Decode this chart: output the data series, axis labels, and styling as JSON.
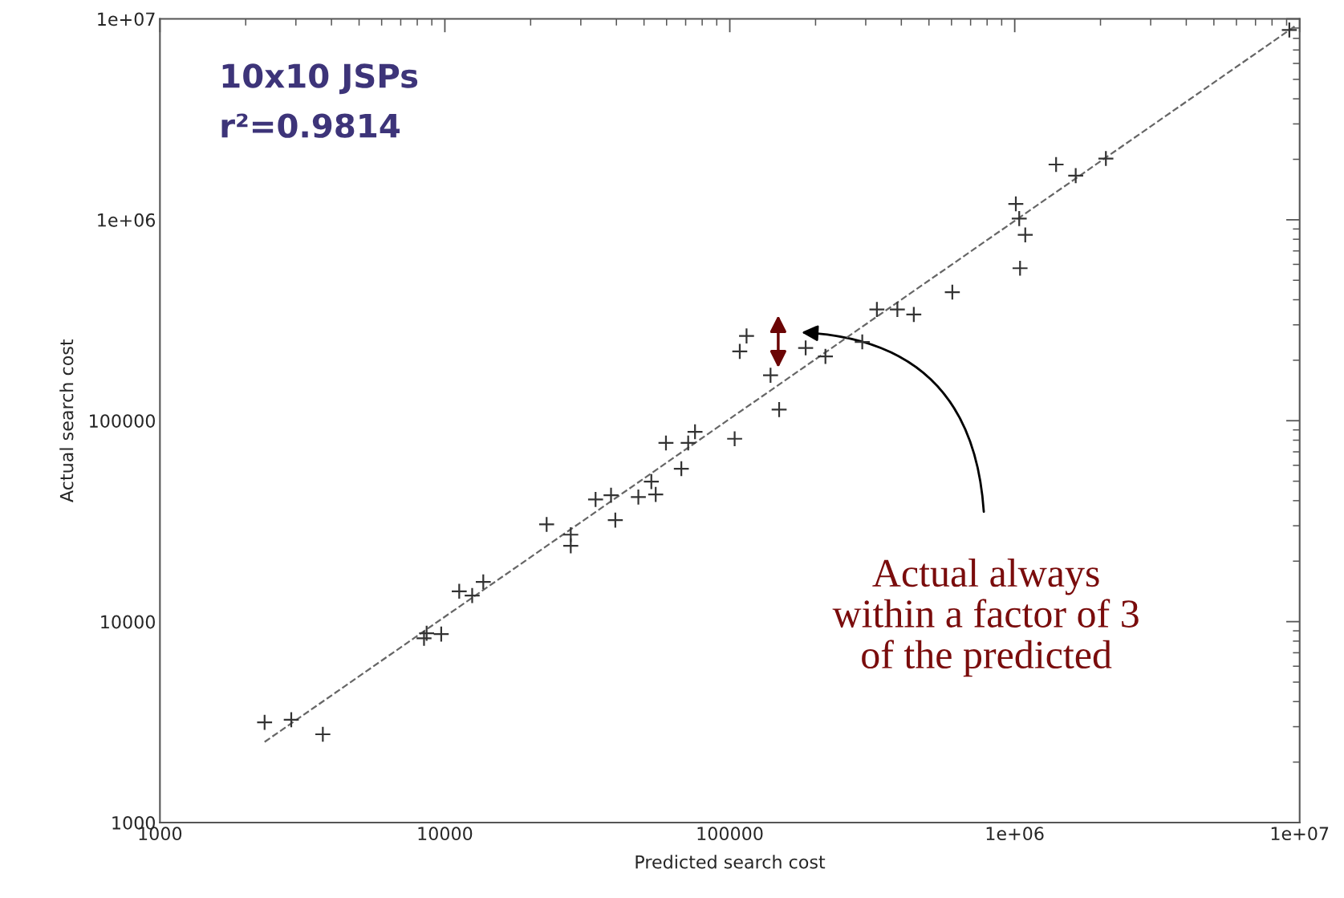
{
  "chart_data": {
    "type": "scatter",
    "xlabel": "Predicted search cost",
    "ylabel": "Actual search cost",
    "log": "xy",
    "grid": false,
    "marker": "cross",
    "xlim": [
      1000,
      10000000
    ],
    "ylim": [
      1000,
      10000000
    ],
    "xticks": [
      1000,
      10000,
      100000,
      {
        "value": 1000000,
        "label": "1e+06"
      },
      {
        "value": 10000000,
        "label": "1e+07"
      }
    ],
    "yticks": [
      1000,
      10000,
      100000,
      {
        "value": 1000000,
        "label": "1e+06"
      },
      {
        "value": 10000000,
        "label": "1e+07"
      }
    ],
    "series": [
      {
        "color": "#333333",
        "x": [
          2330,
          2890,
          3730,
          8450,
          8630,
          9710,
          11230,
          12470,
          13640,
          22760,
          27660,
          27660,
          33800,
          38300,
          39650,
          47760,
          53050,
          54950,
          59700,
          67600,
          71450,
          75500,
          104000,
          108400,
          114500,
          139000,
          149000,
          184600,
          216600,
          291700,
          328300,
          387400,
          442400,
          604000,
          1009000,
          1037000,
          1089000,
          1044000,
          1397000,
          1637000,
          2089000,
          9200000
        ],
        "values": [
          3155,
          3250,
          2750,
          8260,
          8750,
          8670,
          14160,
          13490,
          15780,
          30470,
          23850,
          27090,
          40550,
          42590,
          31990,
          41700,
          49770,
          42970,
          77500,
          57700,
          77500,
          88100,
          81300,
          221400,
          264300,
          168300,
          113600,
          230300,
          208900,
          246800,
          357900,
          357900,
          337800,
          436500,
          1200000,
          1014000,
          841000,
          574000,
          1884000,
          1659000,
          2018000,
          8800000
        ]
      },
      {
        "type": "line",
        "color": "#666666",
        "line_style": "dashed",
        "marker": "none",
        "x": [
          2330,
          9700000
        ],
        "values": [
          2520,
          9260000
        ]
      }
    ],
    "annotations": [
      "10x10 JSPs",
      "r²=0.9814",
      "Actual always\nwithin a factor of 3\nof the predicted"
    ]
  }
}
